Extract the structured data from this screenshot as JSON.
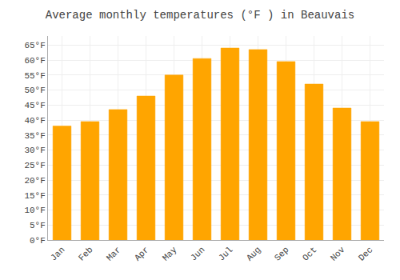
{
  "chart_data": {
    "type": "bar",
    "title": "Average monthly temperatures (°F ) in Beauvais",
    "categories": [
      "Jan",
      "Feb",
      "Mar",
      "Apr",
      "May",
      "Jun",
      "Jul",
      "Aug",
      "Sep",
      "Oct",
      "Nov",
      "Dec"
    ],
    "values": [
      38,
      39.5,
      43.5,
      48,
      55,
      60.5,
      64,
      63.5,
      59.5,
      52,
      44,
      39.5
    ],
    "color": "#FFA500",
    "ylim": [
      0,
      68
    ],
    "yticks": [
      {
        "value": 0,
        "label": "0°F"
      },
      {
        "value": 5,
        "label": "5°F"
      },
      {
        "value": 10,
        "label": "10°F"
      },
      {
        "value": 15,
        "label": "15°F"
      },
      {
        "value": 20,
        "label": "20°F"
      },
      {
        "value": 25,
        "label": "25°F"
      },
      {
        "value": 30,
        "label": "30°F"
      },
      {
        "value": 35,
        "label": "35°F"
      },
      {
        "value": 40,
        "label": "40°F"
      },
      {
        "value": 45,
        "label": "45°F"
      },
      {
        "value": 50,
        "label": "50°F"
      },
      {
        "value": 55,
        "label": "55°F"
      },
      {
        "value": 60,
        "label": "60°F"
      },
      {
        "value": 65,
        "label": "65°F"
      }
    ],
    "grid": true
  }
}
